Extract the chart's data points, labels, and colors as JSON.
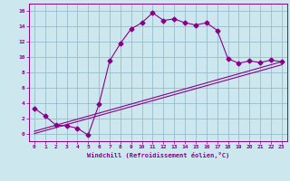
{
  "xlabel": "Windchill (Refroidissement éolien,°C)",
  "bg_color": "#cce8ee",
  "line_color": "#880088",
  "grid_color": "#99bbcc",
  "curve1_x": [
    0,
    1,
    2,
    3,
    4,
    5,
    6,
    7,
    8,
    9,
    10,
    11,
    12,
    13,
    14,
    15,
    16,
    17,
    18,
    19,
    20,
    21,
    22,
    23
  ],
  "curve1_y": [
    3.3,
    2.3,
    1.1,
    1.0,
    0.7,
    -0.2,
    3.8,
    9.5,
    11.8,
    13.7,
    14.5,
    15.8,
    14.8,
    15.0,
    14.5,
    14.2,
    14.5,
    13.5,
    9.8,
    9.2,
    9.5,
    9.3,
    9.6,
    9.4
  ],
  "curve2_x": [
    0,
    23
  ],
  "curve2_y": [
    0.3,
    9.4
  ],
  "curve3_x": [
    0,
    23
  ],
  "curve3_y": [
    0.0,
    9.0
  ],
  "ylim": [
    -1,
    17
  ],
  "xlim": [
    -0.5,
    23.5
  ],
  "xticks": [
    0,
    1,
    2,
    3,
    4,
    5,
    6,
    7,
    8,
    9,
    10,
    11,
    12,
    13,
    14,
    15,
    16,
    17,
    18,
    19,
    20,
    21,
    22,
    23
  ],
  "yticks": [
    0,
    2,
    4,
    6,
    8,
    10,
    12,
    14,
    16
  ]
}
